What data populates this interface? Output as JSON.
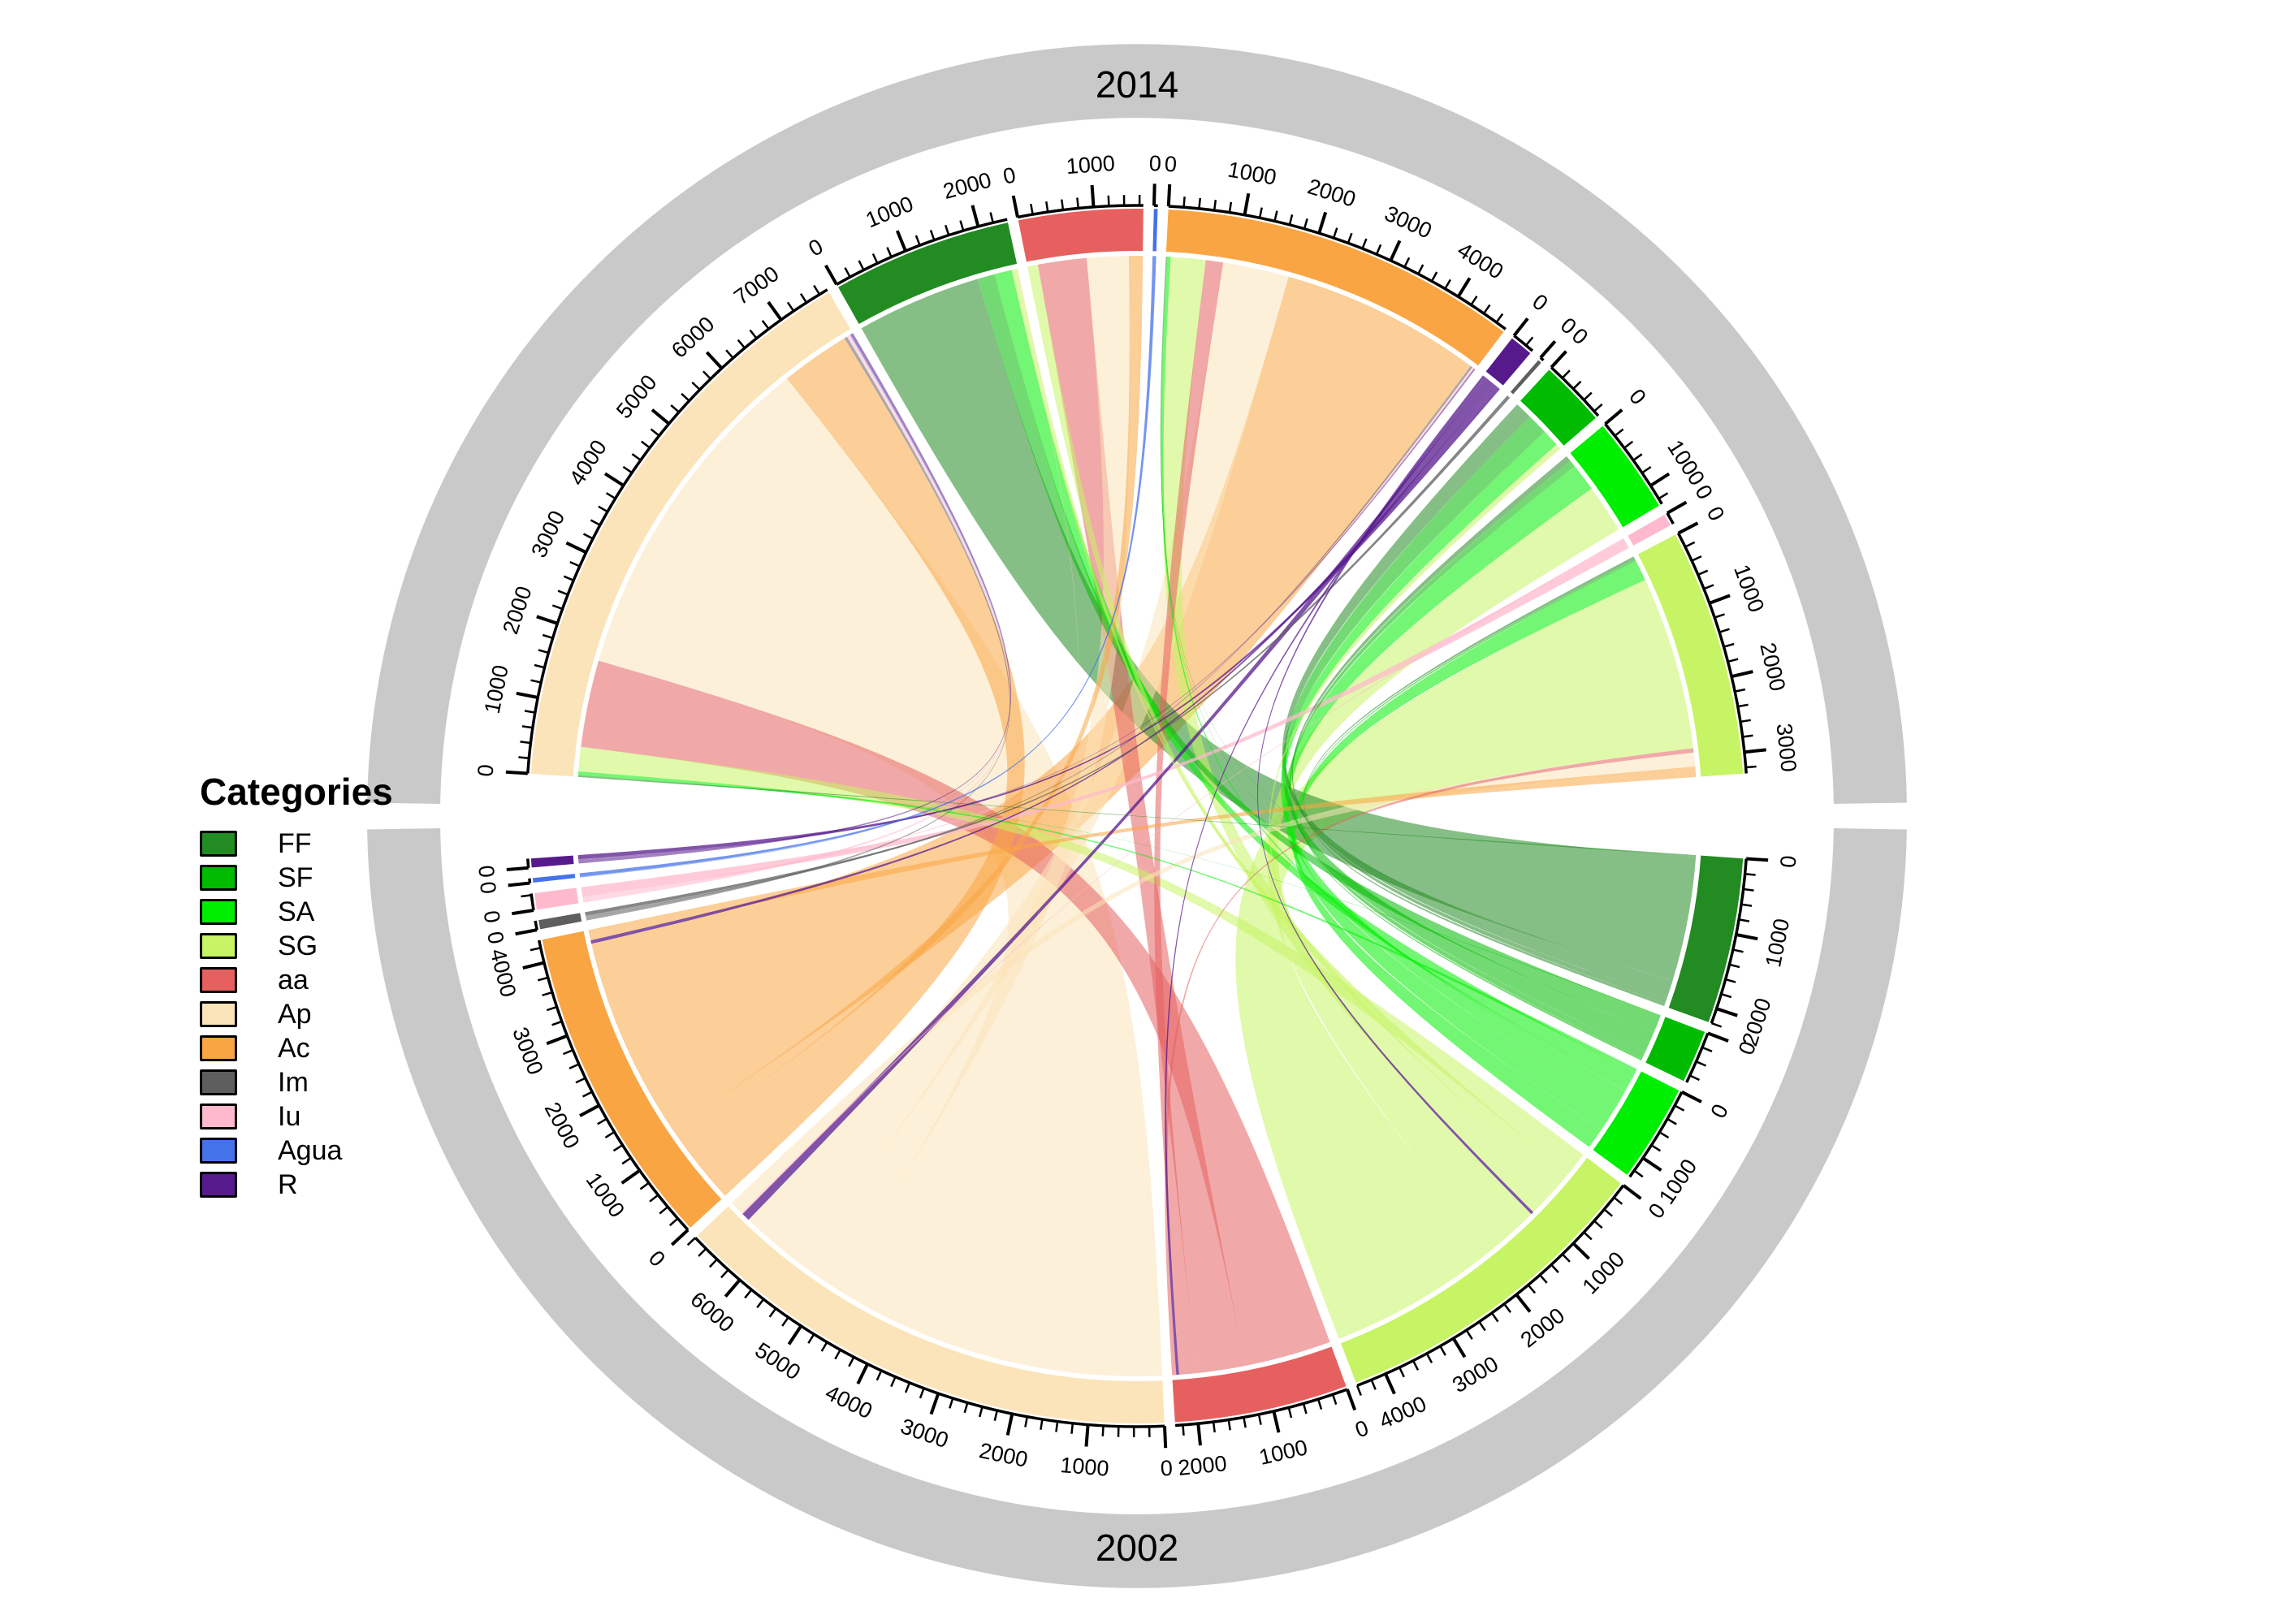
{
  "legend": {
    "title": "Categories",
    "items": [
      {
        "label": "FF",
        "color": "#228B22"
      },
      {
        "label": "SF",
        "color": "#00BB00"
      },
      {
        "label": "SA",
        "color": "#00EE00"
      },
      {
        "label": "SG",
        "color": "#C7F464"
      },
      {
        "label": "aa",
        "color": "#E66060"
      },
      {
        "label": "Ap",
        "color": "#FCE4BA"
      },
      {
        "label": "Ac",
        "color": "#FAA543"
      },
      {
        "label": "Im",
        "color": "#5E5E5E"
      },
      {
        "label": "Iu",
        "color": "#FFB9CC"
      },
      {
        "label": "Agua",
        "color": "#4472E8"
      },
      {
        "label": "R",
        "color": "#571A8C"
      }
    ]
  },
  "chart_data": {
    "type": "chord",
    "title_top": "2014",
    "title_bottom": "2002",
    "ring_color": "#C9C9C9",
    "axis": {
      "major_tick": 1000,
      "minor_tick": 200
    },
    "halves": [
      {
        "year": "2014",
        "position": "top",
        "order": [
          "Ap",
          "FF",
          "aa",
          "Agua",
          "Ac",
          "R",
          "Im",
          "SF",
          "SA",
          "Iu",
          "SG"
        ],
        "totals": {
          "Ap": 7720,
          "FF": 2390,
          "aa": 1650,
          "Agua": 50,
          "Ac": 4750,
          "R": 310,
          "Im": 50,
          "SF": 880,
          "SA": 1280,
          "Iu": 160,
          "SG": 3280
        }
      },
      {
        "year": "2002",
        "position": "bottom",
        "order": [
          "R",
          "Agua",
          "Iu",
          "Im",
          "Ac",
          "Ap",
          "aa",
          "SG",
          "SA",
          "SF",
          "FF"
        ],
        "totals": {
          "R": 120,
          "Agua": 60,
          "Iu": 220,
          "Im": 120,
          "Ac": 4300,
          "Ap": 6800,
          "aa": 2300,
          "SG": 4400,
          "SA": 1300,
          "SF": 700,
          "FF": 2200
        }
      }
    ],
    "flows": [
      {
        "from": "FF",
        "to": "FF",
        "value": 1800
      },
      {
        "from": "FF",
        "to": "SF",
        "value": 250
      },
      {
        "from": "FF",
        "to": "SA",
        "value": 80
      },
      {
        "from": "FF",
        "to": "SG",
        "value": 40
      },
      {
        "from": "FF",
        "to": "Ap",
        "value": 20
      },
      {
        "from": "FF",
        "to": "Ac",
        "value": 10
      },
      {
        "from": "SF",
        "to": "FF",
        "value": 250
      },
      {
        "from": "SF",
        "to": "SF",
        "value": 300
      },
      {
        "from": "SF",
        "to": "SA",
        "value": 100
      },
      {
        "from": "SF",
        "to": "SG",
        "value": 30
      },
      {
        "from": "SF",
        "to": "Ap",
        "value": 10
      },
      {
        "from": "SF",
        "to": "Ac",
        "value": 10
      },
      {
        "from": "SA",
        "to": "FF",
        "value": 250
      },
      {
        "from": "SA",
        "to": "SF",
        "value": 250
      },
      {
        "from": "SA",
        "to": "SA",
        "value": 400
      },
      {
        "from": "SA",
        "to": "SG",
        "value": 300
      },
      {
        "from": "SA",
        "to": "Ap",
        "value": 50
      },
      {
        "from": "SA",
        "to": "Ac",
        "value": 50
      },
      {
        "from": "SG",
        "to": "FF",
        "value": 80
      },
      {
        "from": "SG",
        "to": "SF",
        "value": 80
      },
      {
        "from": "SG",
        "to": "SA",
        "value": 700
      },
      {
        "from": "SG",
        "to": "SG",
        "value": 2500
      },
      {
        "from": "SG",
        "to": "aa",
        "value": 150
      },
      {
        "from": "SG",
        "to": "Ap",
        "value": 350
      },
      {
        "from": "SG",
        "to": "Ac",
        "value": 500
      },
      {
        "from": "SG",
        "to": "R",
        "value": 40
      },
      {
        "from": "aa",
        "to": "aa",
        "value": 700
      },
      {
        "from": "aa",
        "to": "Ap",
        "value": 1250
      },
      {
        "from": "aa",
        "to": "Ac",
        "value": 250
      },
      {
        "from": "aa",
        "to": "SG",
        "value": 60
      },
      {
        "from": "aa",
        "to": "R",
        "value": 40
      },
      {
        "from": "Ap",
        "to": "Ap",
        "value": 4900
      },
      {
        "from": "Ap",
        "to": "Ac",
        "value": 950
      },
      {
        "from": "Ap",
        "to": "aa",
        "value": 600
      },
      {
        "from": "Ap",
        "to": "SG",
        "value": 200
      },
      {
        "from": "Ap",
        "to": "R",
        "value": 120
      },
      {
        "from": "Ap",
        "to": "Iu",
        "value": 20
      },
      {
        "from": "Ap",
        "to": "FF",
        "value": 10
      },
      {
        "from": "Ac",
        "to": "Ac",
        "value": 2900
      },
      {
        "from": "Ac",
        "to": "Ap",
        "value": 1000
      },
      {
        "from": "Ac",
        "to": "aa",
        "value": 200
      },
      {
        "from": "Ac",
        "to": "SG",
        "value": 150
      },
      {
        "from": "Ac",
        "to": "R",
        "value": 50
      },
      {
        "from": "Im",
        "to": "Im",
        "value": 50
      },
      {
        "from": "Im",
        "to": "Ap",
        "value": 40
      },
      {
        "from": "Im",
        "to": "Ac",
        "value": 30
      },
      {
        "from": "Iu",
        "to": "Iu",
        "value": 140
      },
      {
        "from": "Iu",
        "to": "Ap",
        "value": 50
      },
      {
        "from": "Iu",
        "to": "Ac",
        "value": 30
      },
      {
        "from": "Agua",
        "to": "Agua",
        "value": 50
      },
      {
        "from": "Agua",
        "to": "Ap",
        "value": 10
      },
      {
        "from": "R",
        "to": "R",
        "value": 60
      },
      {
        "from": "R",
        "to": "Ap",
        "value": 40
      },
      {
        "from": "R",
        "to": "Ac",
        "value": 20
      }
    ]
  }
}
